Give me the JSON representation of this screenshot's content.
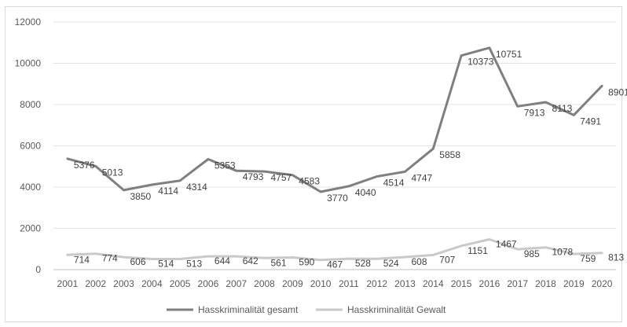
{
  "chart_data": {
    "type": "line",
    "title": "",
    "xlabel": "",
    "ylabel": "",
    "categories": [
      "2001",
      "2002",
      "2003",
      "2004",
      "2005",
      "2006",
      "2007",
      "2008",
      "2009",
      "2010",
      "2011",
      "2012",
      "2013",
      "2014",
      "2015",
      "2016",
      "2017",
      "2018",
      "2019",
      "2020"
    ],
    "ylim": [
      0,
      12000
    ],
    "yticks": [
      0,
      2000,
      4000,
      6000,
      8000,
      10000,
      12000
    ],
    "grid": true,
    "legend_position": "bottom",
    "series": [
      {
        "name": "Hasskriminalität gesamt",
        "color": "#7f7f7f",
        "values": [
          5376,
          5013,
          3850,
          4114,
          4314,
          5353,
          4793,
          4757,
          4583,
          3770,
          4040,
          4514,
          4747,
          5858,
          10373,
          10751,
          7913,
          8113,
          7491,
          8901
        ]
      },
      {
        "name": "Hasskriminalität Gewalt",
        "color": "#c9c9c9",
        "values": [
          714,
          774,
          606,
          514,
          513,
          644,
          642,
          561,
          590,
          467,
          528,
          524,
          608,
          707,
          1151,
          1467,
          985,
          1078,
          759,
          813
        ]
      }
    ]
  }
}
